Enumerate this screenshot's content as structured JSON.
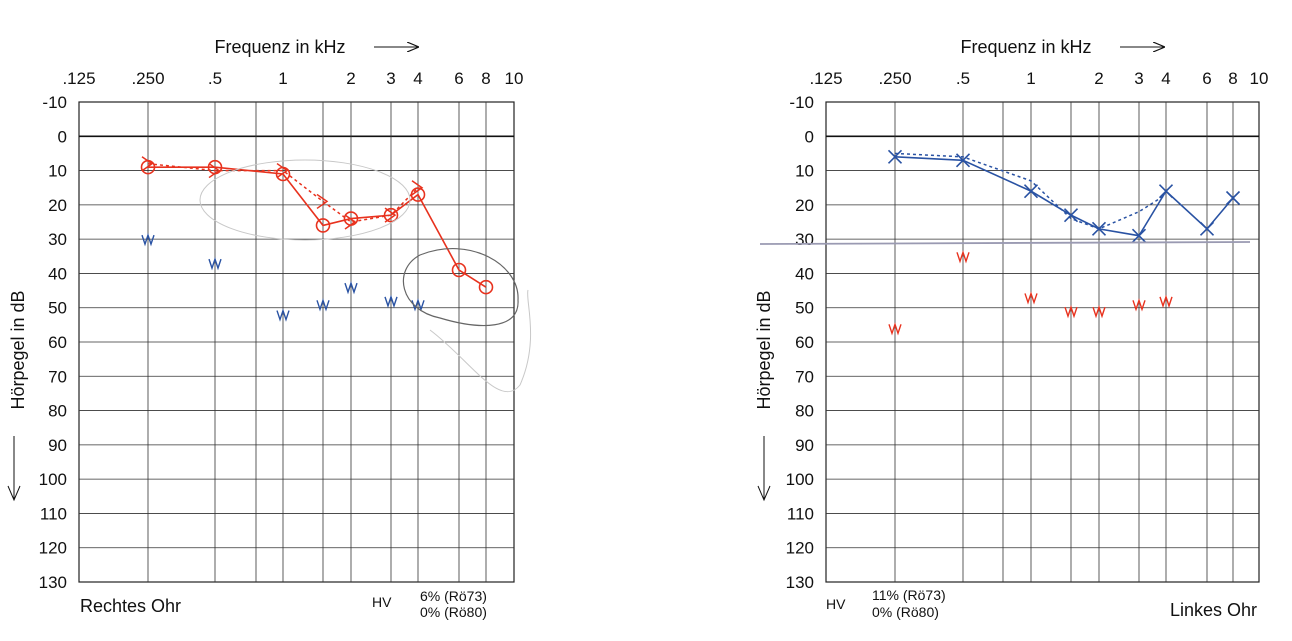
{
  "chart_data": [
    {
      "type": "line",
      "title": "Frequenz in kHz",
      "xlabel": "Frequenz in kHz",
      "ylabel": "Hörpegel in dB",
      "x_ticks": [
        ".125",
        ".250",
        ".5",
        "1",
        "2",
        "3",
        "4",
        "6",
        "8",
        "10"
      ],
      "y_ticks": [
        "-10",
        "0",
        "10",
        "20",
        "30",
        "40",
        "50",
        "60",
        "70",
        "80",
        "90",
        "100",
        "110",
        "120",
        "130"
      ],
      "ylim": [
        -10,
        130
      ],
      "y_inverted": true,
      "ear_label": "Rechtes Ohr",
      "hv_label": "HV",
      "hv_values": [
        "6% (Rö73)",
        "0% (Rö80)"
      ],
      "series": [
        {
          "color": "#e8321e",
          "marker": "circle",
          "line": "solid",
          "points": [
            {
              "x": 0.25,
              "y": 9
            },
            {
              "x": 0.5,
              "y": 9
            },
            {
              "x": 1,
              "y": 11
            },
            {
              "x": 1.5,
              "y": 26
            },
            {
              "x": 2,
              "y": 24
            },
            {
              "x": 3,
              "y": 23
            },
            {
              "x": 4,
              "y": 17
            },
            {
              "x": 6,
              "y": 39
            },
            {
              "x": 8,
              "y": 44
            }
          ]
        },
        {
          "color": "#e8321e",
          "marker": "bracket",
          "line": "dotted",
          "points": [
            {
              "x": 0.25,
              "y": 8
            },
            {
              "x": 0.5,
              "y": 10
            },
            {
              "x": 1,
              "y": 10
            },
            {
              "x": 1.5,
              "y": 19
            },
            {
              "x": 2,
              "y": 25
            },
            {
              "x": 3,
              "y": 23
            },
            {
              "x": 4,
              "y": 15
            }
          ]
        },
        {
          "color": "#2952a3",
          "marker": "squiggle",
          "line": "none",
          "points": [
            {
              "x": 0.25,
              "y": 30
            },
            {
              "x": 0.5,
              "y": 37
            },
            {
              "x": 1,
              "y": 52
            },
            {
              "x": 1.5,
              "y": 49
            },
            {
              "x": 2,
              "y": 44
            },
            {
              "x": 3,
              "y": 48
            },
            {
              "x": 4,
              "y": 49
            }
          ]
        }
      ]
    },
    {
      "type": "line",
      "title": "Frequenz in kHz",
      "xlabel": "Frequenz in kHz",
      "ylabel": "Hörpegel in dB",
      "x_ticks": [
        ".125",
        ".250",
        ".5",
        "1",
        "2",
        "3",
        "4",
        "6",
        "8",
        "10"
      ],
      "y_ticks": [
        "-10",
        "0",
        "10",
        "20",
        "30",
        "40",
        "50",
        "60",
        "70",
        "80",
        "90",
        "100",
        "110",
        "120",
        "130"
      ],
      "ylim": [
        -10,
        130
      ],
      "y_inverted": true,
      "ear_label": "Linkes Ohr",
      "hv_label": "HV",
      "hv_values": [
        "11% (Rö73)",
        "0% (Rö80)"
      ],
      "series": [
        {
          "color": "#2952a3",
          "marker": "cross",
          "line": "solid",
          "points": [
            {
              "x": 0.25,
              "y": 6
            },
            {
              "x": 0.5,
              "y": 7
            },
            {
              "x": 1,
              "y": 16
            },
            {
              "x": 1.5,
              "y": 23
            },
            {
              "x": 2,
              "y": 27
            },
            {
              "x": 3,
              "y": 29
            },
            {
              "x": 4,
              "y": 16
            },
            {
              "x": 6,
              "y": 27
            },
            {
              "x": 8,
              "y": 18
            }
          ]
        },
        {
          "color": "#2952a3",
          "marker": "none",
          "line": "dotted",
          "points": [
            {
              "x": 0.25,
              "y": 5
            },
            {
              "x": 0.5,
              "y": 6
            },
            {
              "x": 1,
              "y": 13
            },
            {
              "x": 1.5,
              "y": 24
            },
            {
              "x": 2,
              "y": 27
            },
            {
              "x": 3,
              "y": 22
            },
            {
              "x": 4,
              "y": 17
            }
          ]
        },
        {
          "color": "#e8321e",
          "marker": "squiggle",
          "line": "none",
          "points": [
            {
              "x": 0.25,
              "y": 56
            },
            {
              "x": 0.5,
              "y": 35
            },
            {
              "x": 1,
              "y": 47
            },
            {
              "x": 1.5,
              "y": 51
            },
            {
              "x": 2,
              "y": 51
            },
            {
              "x": 3,
              "y": 49
            },
            {
              "x": 4,
              "y": 48
            }
          ]
        }
      ]
    }
  ]
}
